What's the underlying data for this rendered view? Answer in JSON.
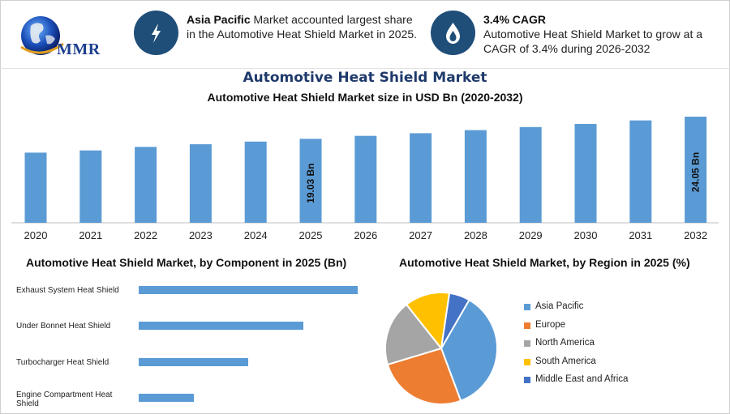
{
  "logo": {
    "text": "MMR"
  },
  "info": {
    "region": {
      "bold": "Asia Pacific",
      "text": " Market accounted largest share in the Automotive Heat Shield Market in 2025."
    },
    "cagr": {
      "bold": "3.4% CAGR",
      "text": "Automotive Heat Shield Market to grow at a CAGR of 3.4% during 2026-2032"
    }
  },
  "icons": {
    "region": "lightning-icon",
    "cagr": "fire-drop-icon"
  },
  "colors": {
    "bar": "#5b9bd5",
    "icon_bg": "#1f4e79",
    "title": "#1f3a6b"
  },
  "page_title": "Automotive Heat Shield Market",
  "chart_data": [
    {
      "type": "bar",
      "title": "Automotive Heat Shield Market size in USD Bn (2020-2032)",
      "categories": [
        "2020",
        "2021",
        "2022",
        "2023",
        "2024",
        "2025",
        "2026",
        "2027",
        "2028",
        "2029",
        "2030",
        "2031",
        "2032"
      ],
      "values": [
        15.9,
        16.4,
        17.2,
        17.8,
        18.4,
        19.03,
        19.7,
        20.3,
        21.0,
        21.7,
        22.4,
        23.2,
        24.05
      ],
      "data_labels": {
        "5": "19.03 Bn",
        "12": "24.05 Bn"
      },
      "ylim": [
        0,
        24.05
      ],
      "grid": false,
      "color": "#5b9bd5"
    },
    {
      "type": "bar",
      "orientation": "horizontal",
      "title": "Automotive Heat Shield Market, by Component in 2025 (Bn)",
      "categories": [
        "Exhaust System Heat Shield",
        "Under Bonnet Heat Shield",
        "Turbocharger Heat Shield",
        "Engine Compartment Heat Shield"
      ],
      "values": [
        8.0,
        6.0,
        4.0,
        2.0
      ],
      "xlim": [
        0,
        8.0
      ],
      "color": "#5b9bd5"
    },
    {
      "type": "pie",
      "title": "Automotive Heat Shield Market, by Region in 2025 (%)",
      "labels": [
        "Asia Pacific",
        "Europe",
        "North America",
        "South America",
        "Middle East and Africa"
      ],
      "values": [
        36,
        26,
        19,
        13,
        6
      ],
      "colors": [
        "#5b9bd5",
        "#ed7d31",
        "#a5a5a5",
        "#ffc000",
        "#4472c4"
      ],
      "legend_position": "right"
    }
  ]
}
